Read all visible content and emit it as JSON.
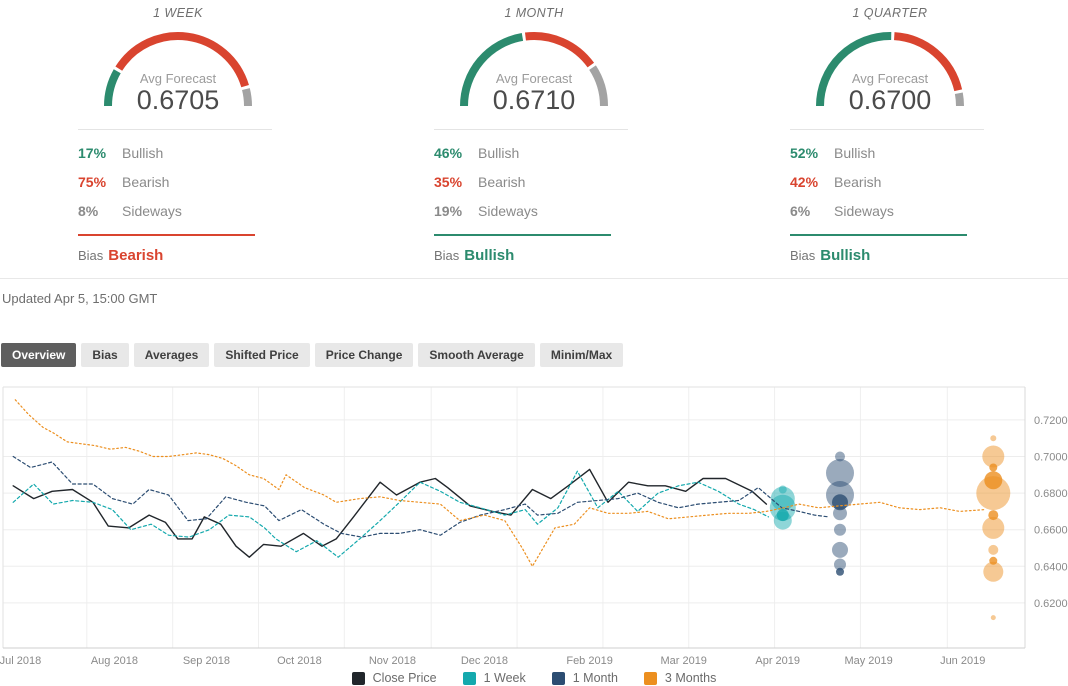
{
  "colors": {
    "bullish": "#2c8b6e",
    "bearish": "#d9442f",
    "sideways": "#9e9e9e",
    "gauge_gray": "#a3a3a3"
  },
  "forecasts": [
    {
      "period": "1 WEEK",
      "avg_label": "Avg Forecast",
      "avg_value": "0.6705",
      "bullish": 17,
      "bearish": 75,
      "sideways": 8,
      "bullish_pct": "17%",
      "bearish_pct": "75%",
      "sideways_pct": "8%",
      "bullish_label": "Bullish",
      "bearish_label": "Bearish",
      "sideways_label": "Sideways",
      "bias_label": "Bias",
      "bias": "Bearish",
      "bias_color": "#d9442f"
    },
    {
      "period": "1 MONTH",
      "avg_label": "Avg Forecast",
      "avg_value": "0.6710",
      "bullish": 46,
      "bearish": 35,
      "sideways": 19,
      "bullish_pct": "46%",
      "bearish_pct": "35%",
      "sideways_pct": "19%",
      "bullish_label": "Bullish",
      "bearish_label": "Bearish",
      "sideways_label": "Sideways",
      "bias_label": "Bias",
      "bias": "Bullish",
      "bias_color": "#2c8b6e"
    },
    {
      "period": "1 QUARTER",
      "avg_label": "Avg Forecast",
      "avg_value": "0.6700",
      "bullish": 52,
      "bearish": 42,
      "sideways": 6,
      "bullish_pct": "52%",
      "bearish_pct": "42%",
      "sideways_pct": "6%",
      "bullish_label": "Bullish",
      "bearish_label": "Bearish",
      "sideways_label": "Sideways",
      "bias_label": "Bias",
      "bias": "Bullish",
      "bias_color": "#2c8b6e"
    }
  ],
  "updated": "Updated Apr 5, 15:00 GMT",
  "tabs": [
    {
      "label": "Overview",
      "active": true
    },
    {
      "label": "Bias",
      "active": false
    },
    {
      "label": "Averages",
      "active": false
    },
    {
      "label": "Shifted Price",
      "active": false
    },
    {
      "label": "Price Change",
      "active": false
    },
    {
      "label": "Smooth Average",
      "active": false
    },
    {
      "label": "Minim/Max",
      "active": false
    }
  ],
  "chart_data": {
    "type": "line",
    "title": "",
    "grid": true,
    "legend_position": "bottom",
    "y_axis": {
      "side": "right",
      "range": [
        0.5954,
        0.738
      ],
      "ticks": [
        0.72,
        0.7,
        0.68,
        0.66,
        0.64,
        0.62
      ],
      "tick_labels": [
        "0.7200",
        "0.7000",
        "0.6800",
        "0.6600",
        "0.6400",
        "0.6200"
      ]
    },
    "x_axis": {
      "labels": [
        {
          "label": "Jul 2018",
          "pct": 1.7
        },
        {
          "label": "Aug 2018",
          "pct": 10.9
        },
        {
          "label": "Sep 2018",
          "pct": 19.9
        },
        {
          "label": "Oct 2018",
          "pct": 29.0
        },
        {
          "label": "Nov 2018",
          "pct": 38.1
        },
        {
          "label": "Dec 2018",
          "pct": 47.1
        },
        {
          "label": "Feb 2019",
          "pct": 57.4
        },
        {
          "label": "Mar 2019",
          "pct": 66.6
        },
        {
          "label": "Apr 2019",
          "pct": 75.8
        },
        {
          "label": "May 2019",
          "pct": 84.7
        },
        {
          "label": "Jun 2019",
          "pct": 93.9
        }
      ],
      "vgrid_pct": [
        8.2,
        16.6,
        25.0,
        33.4,
        41.9,
        50.3,
        58.7,
        67.1,
        75.5,
        83.9,
        92.4
      ]
    },
    "series": [
      {
        "name": "Close Price",
        "color": "#21262b",
        "style": "solid",
        "width": 1.4,
        "points": [
          [
            1.0,
            0.684
          ],
          [
            3.0,
            0.677
          ],
          [
            4.8,
            0.681
          ],
          [
            6.8,
            0.682
          ],
          [
            8.8,
            0.675
          ],
          [
            10.3,
            0.662
          ],
          [
            12.3,
            0.661
          ],
          [
            14.3,
            0.668
          ],
          [
            15.9,
            0.664
          ],
          [
            17.1,
            0.655
          ],
          [
            18.5,
            0.655
          ],
          [
            19.7,
            0.667
          ],
          [
            21.3,
            0.663
          ],
          [
            22.8,
            0.651
          ],
          [
            24.1,
            0.645
          ],
          [
            25.5,
            0.652
          ],
          [
            27.2,
            0.651
          ],
          [
            29.4,
            0.658
          ],
          [
            31.2,
            0.651
          ],
          [
            32.6,
            0.655
          ],
          [
            34.3,
            0.667
          ],
          [
            36.9,
            0.686
          ],
          [
            38.5,
            0.679
          ],
          [
            40.8,
            0.686
          ],
          [
            42.3,
            0.688
          ],
          [
            43.5,
            0.683
          ],
          [
            45.7,
            0.673
          ],
          [
            47.9,
            0.67
          ],
          [
            49.7,
            0.668
          ],
          [
            51.8,
            0.682
          ],
          [
            53.6,
            0.677
          ],
          [
            55.3,
            0.684
          ],
          [
            57.4,
            0.693
          ],
          [
            59.2,
            0.675
          ],
          [
            61.2,
            0.686
          ],
          [
            63.1,
            0.684
          ],
          [
            64.8,
            0.684
          ],
          [
            66.8,
            0.681
          ],
          [
            68.5,
            0.688
          ],
          [
            70.7,
            0.688
          ],
          [
            73.3,
            0.681
          ],
          [
            74.7,
            0.674
          ]
        ]
      },
      {
        "name": "1 Week",
        "color": "#14a9ad",
        "style": "dashed",
        "width": 1.2,
        "points": [
          [
            1.0,
            0.675
          ],
          [
            3.0,
            0.685
          ],
          [
            4.9,
            0.674
          ],
          [
            6.8,
            0.676
          ],
          [
            8.8,
            0.675
          ],
          [
            10.7,
            0.671
          ],
          [
            12.5,
            0.66
          ],
          [
            14.5,
            0.663
          ],
          [
            16.2,
            0.657
          ],
          [
            18.2,
            0.656
          ],
          [
            20.2,
            0.66
          ],
          [
            22.1,
            0.668
          ],
          [
            24.1,
            0.667
          ],
          [
            25.6,
            0.661
          ],
          [
            26.7,
            0.655
          ],
          [
            28.7,
            0.648
          ],
          [
            30.7,
            0.654
          ],
          [
            32.8,
            0.645
          ],
          [
            34.9,
            0.655
          ],
          [
            36.9,
            0.665
          ],
          [
            38.8,
            0.675
          ],
          [
            40.8,
            0.686
          ],
          [
            42.8,
            0.681
          ],
          [
            44.7,
            0.675
          ],
          [
            46.7,
            0.672
          ],
          [
            49.1,
            0.668
          ],
          [
            51.1,
            0.671
          ],
          [
            52.3,
            0.663
          ],
          [
            54.3,
            0.672
          ],
          [
            56.2,
            0.692
          ],
          [
            58.2,
            0.672
          ],
          [
            60.2,
            0.681
          ],
          [
            62.1,
            0.67
          ],
          [
            64.1,
            0.68
          ],
          [
            66.1,
            0.684
          ],
          [
            68.0,
            0.686
          ],
          [
            70.0,
            0.681
          ],
          [
            72.0,
            0.674
          ],
          [
            73.5,
            0.671
          ],
          [
            74.9,
            0.667
          ]
        ],
        "bubbles": {
          "pct": 76.3,
          "items": [
            [
              0.682,
              4,
              0
            ],
            [
              0.677,
              12,
              0
            ],
            [
              0.672,
              13,
              0
            ],
            [
              0.668,
              6,
              1
            ],
            [
              0.665,
              9,
              0
            ]
          ]
        }
      },
      {
        "name": "1 Month",
        "color": "#2c4d72",
        "style": "dashed",
        "width": 1.2,
        "points": [
          [
            1.0,
            0.7
          ],
          [
            2.7,
            0.694
          ],
          [
            4.8,
            0.697
          ],
          [
            6.8,
            0.685
          ],
          [
            8.8,
            0.685
          ],
          [
            10.7,
            0.677
          ],
          [
            12.7,
            0.674
          ],
          [
            14.3,
            0.682
          ],
          [
            16.2,
            0.679
          ],
          [
            18.1,
            0.665
          ],
          [
            19.9,
            0.666
          ],
          [
            21.8,
            0.678
          ],
          [
            23.8,
            0.675
          ],
          [
            25.6,
            0.673
          ],
          [
            27.0,
            0.665
          ],
          [
            29.2,
            0.671
          ],
          [
            31.4,
            0.663
          ],
          [
            33.1,
            0.658
          ],
          [
            35.1,
            0.656
          ],
          [
            36.9,
            0.658
          ],
          [
            38.8,
            0.658
          ],
          [
            40.8,
            0.66
          ],
          [
            42.8,
            0.657
          ],
          [
            44.7,
            0.664
          ],
          [
            46.7,
            0.668
          ],
          [
            49.1,
            0.671
          ],
          [
            51.1,
            0.674
          ],
          [
            52.3,
            0.668
          ],
          [
            54.3,
            0.669
          ],
          [
            56.2,
            0.675
          ],
          [
            58.2,
            0.676
          ],
          [
            60.2,
            0.677
          ],
          [
            62.1,
            0.68
          ],
          [
            64.1,
            0.675
          ],
          [
            66.1,
            0.672
          ],
          [
            68.0,
            0.674
          ],
          [
            70.0,
            0.675
          ],
          [
            72.0,
            0.676
          ],
          [
            73.9,
            0.683
          ],
          [
            76.2,
            0.672
          ],
          [
            77.9,
            0.67
          ],
          [
            79.4,
            0.668
          ],
          [
            80.8,
            0.667
          ]
        ],
        "bubbles": {
          "pct": 81.9,
          "items": [
            [
              0.7,
              5,
              0
            ],
            [
              0.691,
              14,
              0
            ],
            [
              0.679,
              14,
              0
            ],
            [
              0.675,
              8,
              1
            ],
            [
              0.669,
              7,
              0
            ],
            [
              0.66,
              6,
              0
            ],
            [
              0.649,
              8,
              0
            ],
            [
              0.641,
              6,
              0
            ],
            [
              0.637,
              4,
              1
            ]
          ]
        }
      },
      {
        "name": "3 Months",
        "color": "#ec8f1f",
        "style": "dotted",
        "width": 1.2,
        "points": [
          [
            1.2,
            0.731
          ],
          [
            2.5,
            0.723
          ],
          [
            3.9,
            0.716
          ],
          [
            4.9,
            0.713
          ],
          [
            6.3,
            0.708
          ],
          [
            7.6,
            0.707
          ],
          [
            9.0,
            0.706
          ],
          [
            10.5,
            0.704
          ],
          [
            12.0,
            0.705
          ],
          [
            13.3,
            0.703
          ],
          [
            14.7,
            0.7
          ],
          [
            16.2,
            0.7
          ],
          [
            17.6,
            0.701
          ],
          [
            18.9,
            0.702
          ],
          [
            20.2,
            0.701
          ],
          [
            21.5,
            0.699
          ],
          [
            22.8,
            0.695
          ],
          [
            24.1,
            0.69
          ],
          [
            25.5,
            0.688
          ],
          [
            27.0,
            0.682
          ],
          [
            27.7,
            0.69
          ],
          [
            29.5,
            0.683
          ],
          [
            31.4,
            0.679
          ],
          [
            32.6,
            0.675
          ],
          [
            34.9,
            0.677
          ],
          [
            36.9,
            0.678
          ],
          [
            38.8,
            0.676
          ],
          [
            40.8,
            0.675
          ],
          [
            42.8,
            0.674
          ],
          [
            44.7,
            0.665
          ],
          [
            47.1,
            0.668
          ],
          [
            49.1,
            0.665
          ],
          [
            50.8,
            0.65
          ],
          [
            51.8,
            0.64
          ],
          [
            54.0,
            0.661
          ],
          [
            55.9,
            0.663
          ],
          [
            57.4,
            0.672
          ],
          [
            59.2,
            0.669
          ],
          [
            61.2,
            0.669
          ],
          [
            63.1,
            0.67
          ],
          [
            65.1,
            0.666
          ],
          [
            67.1,
            0.667
          ],
          [
            69.0,
            0.668
          ],
          [
            71.0,
            0.669
          ],
          [
            73.0,
            0.669
          ],
          [
            74.7,
            0.67
          ],
          [
            76.4,
            0.672
          ],
          [
            77.9,
            0.674
          ],
          [
            79.8,
            0.672
          ],
          [
            81.8,
            0.673
          ],
          [
            83.8,
            0.674
          ],
          [
            85.8,
            0.675
          ],
          [
            87.7,
            0.672
          ],
          [
            89.7,
            0.671
          ],
          [
            91.7,
            0.672
          ],
          [
            93.6,
            0.67
          ],
          [
            96.1,
            0.671
          ]
        ],
        "bubbles": {
          "pct": 96.9,
          "items": [
            [
              0.71,
              3,
              0
            ],
            [
              0.7,
              11,
              0
            ],
            [
              0.694,
              4,
              1
            ],
            [
              0.687,
              9,
              1
            ],
            [
              0.68,
              17,
              0
            ],
            [
              0.668,
              5,
              1
            ],
            [
              0.661,
              11,
              0
            ],
            [
              0.649,
              5,
              0
            ],
            [
              0.643,
              4,
              1
            ],
            [
              0.637,
              10,
              0
            ],
            [
              0.612,
              2.5,
              0
            ]
          ]
        }
      }
    ],
    "legend": [
      "Close Price",
      "1 Week",
      "1 Month",
      "3 Months"
    ]
  }
}
